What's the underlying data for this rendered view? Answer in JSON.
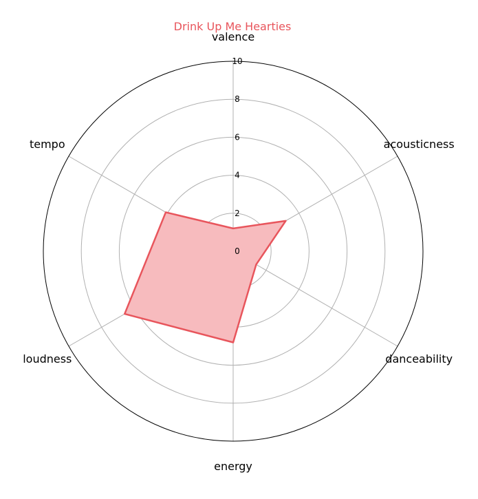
{
  "chart_data": {
    "type": "radar",
    "title": "Drink Up Me Hearties",
    "categories": [
      "valence",
      "acousticness",
      "danceability",
      "energy",
      "loudness",
      "tempo"
    ],
    "series": [
      {
        "values": [
          1.2,
          3.2,
          1.4,
          4.8,
          6.6,
          4.1
        ]
      }
    ],
    "rlim": [
      0,
      10
    ],
    "r_ticks": [
      "0",
      "2",
      "4",
      "6",
      "8",
      "10"
    ],
    "grid": true,
    "colors": {
      "series": "#e8555c",
      "fill": "#f7bbbe",
      "title": "#e8555c",
      "grid": "#b0b0b0",
      "frame": "#000000"
    }
  }
}
